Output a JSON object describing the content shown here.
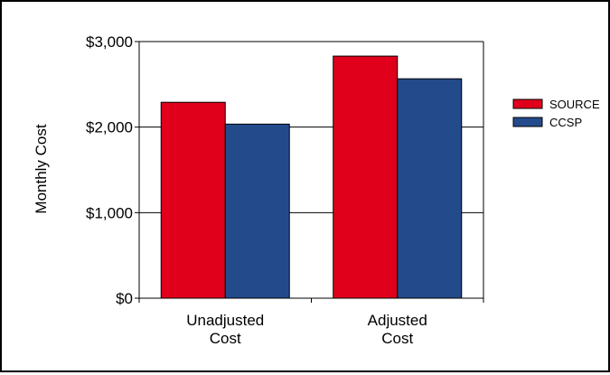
{
  "chart_data": {
    "type": "bar",
    "title": "",
    "xlabel": "",
    "ylabel": "Monthly Cost",
    "categories": [
      [
        "Unadjusted",
        "Cost"
      ],
      [
        "Adjusted",
        "Cost"
      ]
    ],
    "series": [
      {
        "name": "SOURCE",
        "values": [
          2290,
          2830
        ],
        "color": "#e0001b"
      },
      {
        "name": "CCSP",
        "values": [
          2035,
          2565
        ],
        "color": "#234b8c"
      }
    ],
    "ylim": [
      0,
      3000
    ],
    "yticks": [
      0,
      1000,
      2000,
      3000
    ],
    "ytick_labels": [
      "$0",
      "$1,000",
      "$2,000",
      "$3,000"
    ],
    "grid": true,
    "legend_position": "right"
  }
}
